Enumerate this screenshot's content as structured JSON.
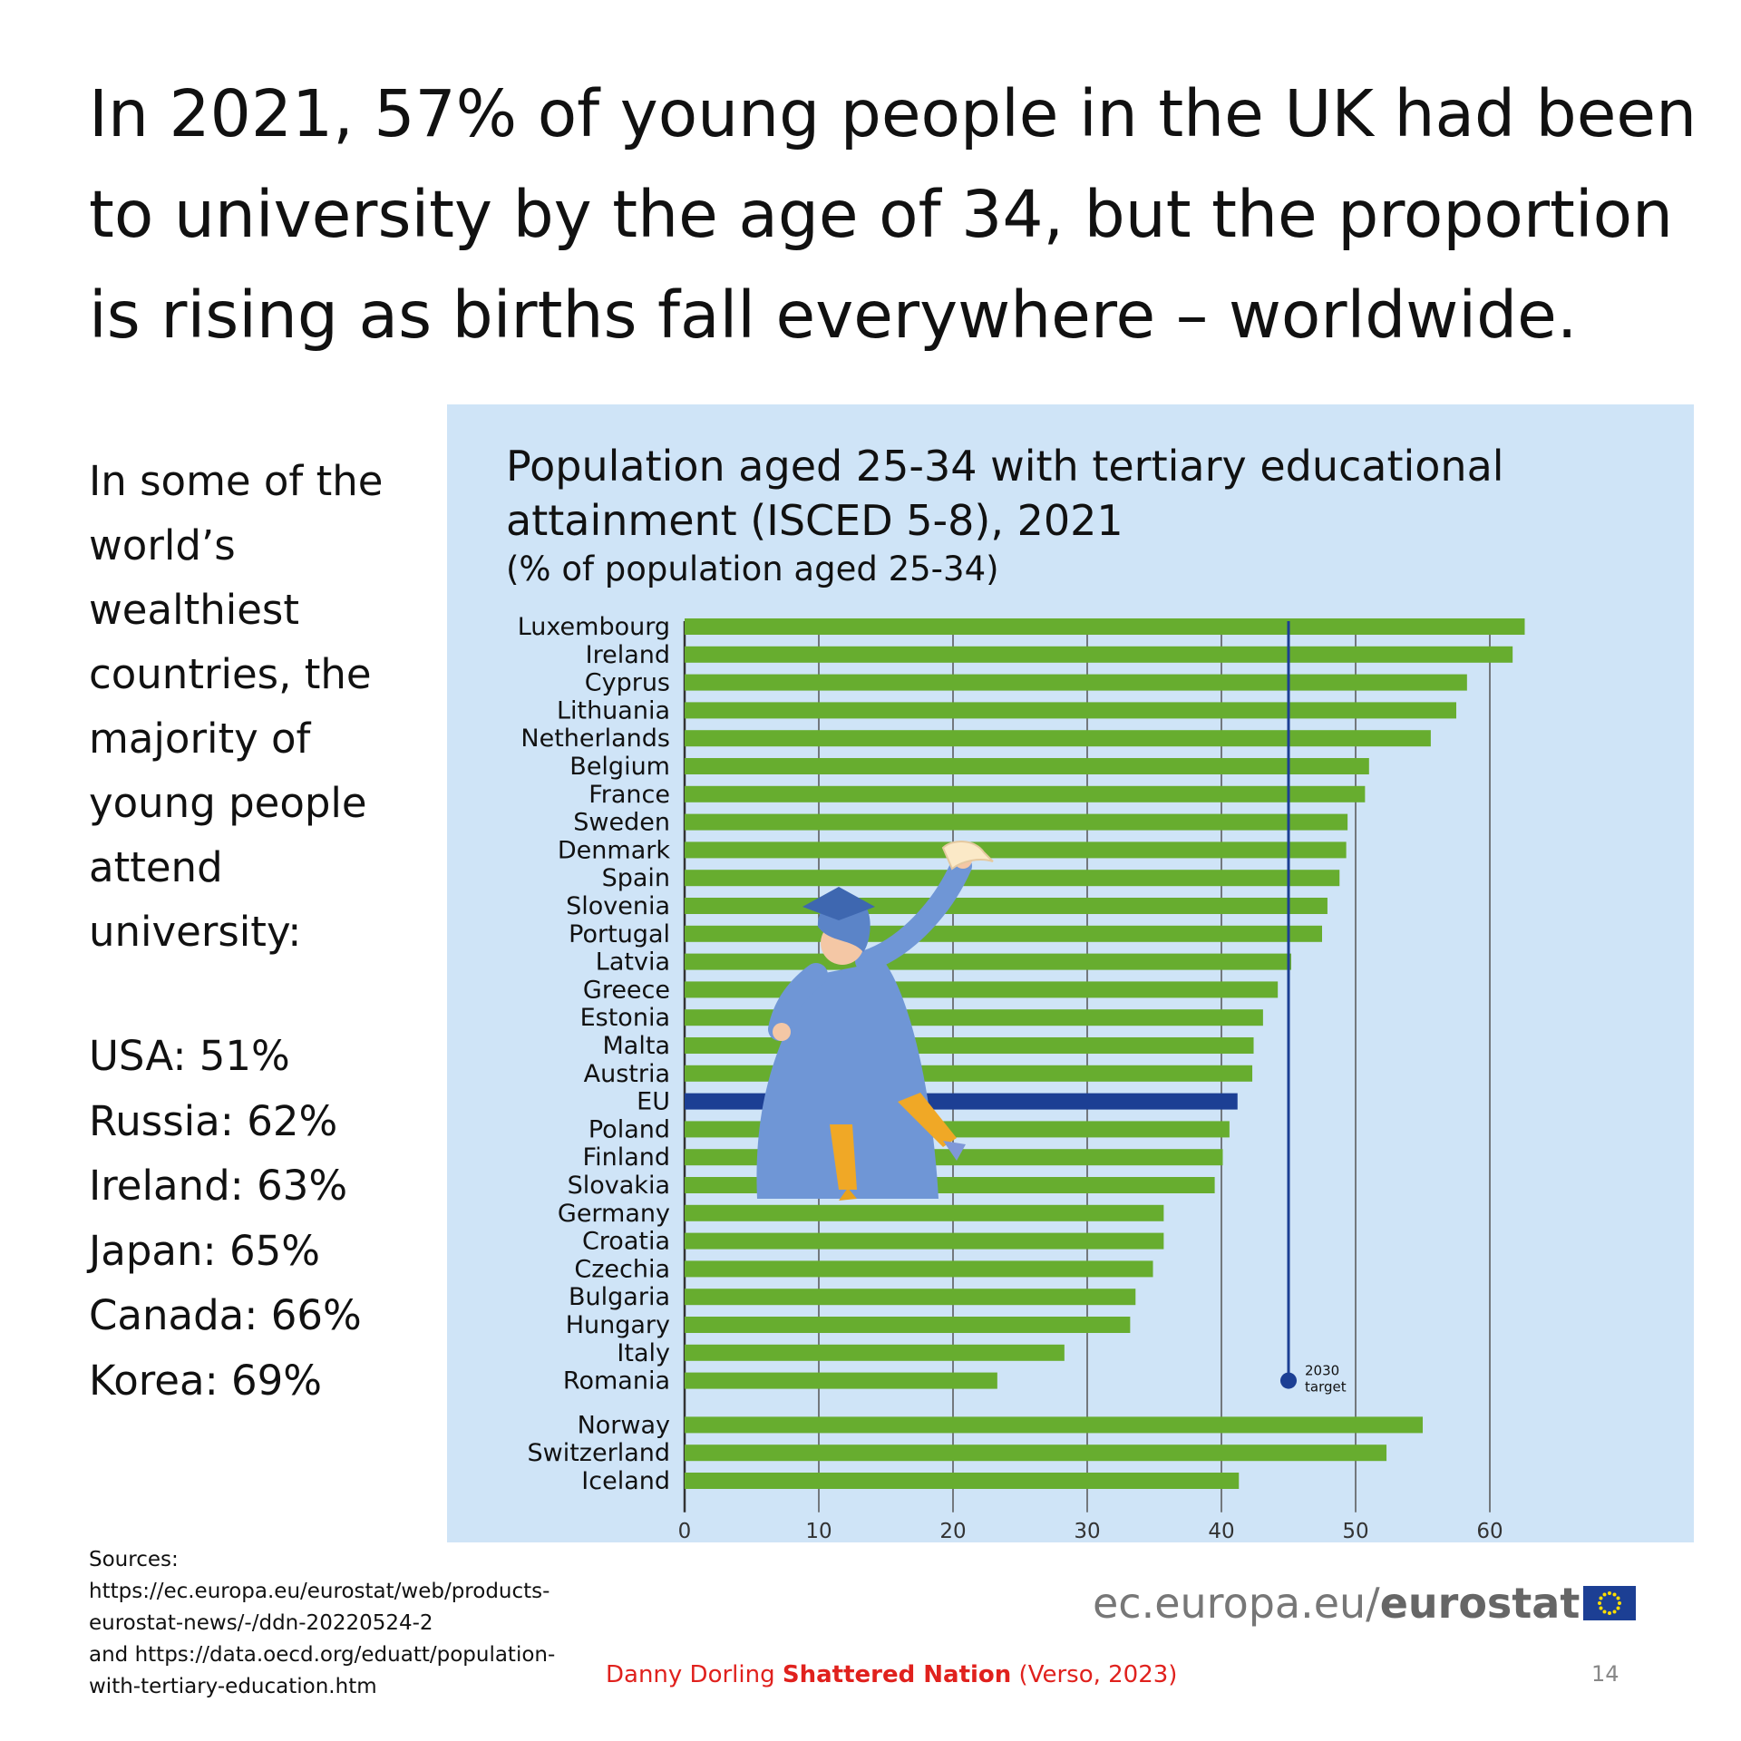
{
  "headline": "In 2021, 57% of young people in the UK had been to university by the age of 34, but the proportion is rising as births fall everywhere – worldwide.",
  "side": {
    "intro": "In some of the world’s wealthiest countries, the majority of young people attend university:",
    "stats": [
      {
        "text": "USA: 51%"
      },
      {
        "text": "Russia: 62%"
      },
      {
        "text": "Ireland: 63%"
      },
      {
        "text": "Japan: 65%"
      },
      {
        "text": "Canada: 66%"
      },
      {
        "text": "Korea: 69%"
      }
    ]
  },
  "chart_data": {
    "type": "bar",
    "orientation": "horizontal",
    "title": "Population aged 25-34 with tertiary educational attainment (ISCED 5-8), 2021",
    "subtitle": "(% of population aged 25-34)",
    "xlim": [
      0,
      65
    ],
    "xticks": [
      "0",
      "10",
      "20",
      "30",
      "40",
      "50",
      "60"
    ],
    "grid": true,
    "target": {
      "value": 45,
      "label_line1": "2030",
      "label_line2": "target"
    },
    "colors": {
      "bar": "#67ad2f",
      "highlight": "#1c3f94",
      "target": "#1c3f94",
      "grid": "#555555"
    },
    "categories": [
      "Luxembourg",
      "Ireland",
      "Cyprus",
      "Lithuania",
      "Netherlands",
      "Belgium",
      "France",
      "Sweden",
      "Denmark",
      "Spain",
      "Slovenia",
      "Portugal",
      "Latvia",
      "Greece",
      "Estonia",
      "Malta",
      "Austria",
      "EU",
      "Poland",
      "Finland",
      "Slovakia",
      "Germany",
      "Croatia",
      "Czechia",
      "Bulgaria",
      "Hungary",
      "Italy",
      "Romania",
      "Norway",
      "Switzerland",
      "Iceland"
    ],
    "values": [
      62.6,
      61.7,
      58.3,
      57.5,
      55.6,
      51.0,
      50.7,
      49.4,
      49.3,
      48.8,
      47.9,
      47.5,
      45.2,
      44.2,
      43.1,
      42.4,
      42.3,
      41.2,
      40.6,
      40.1,
      39.5,
      35.7,
      35.7,
      34.9,
      33.6,
      33.2,
      28.3,
      23.3,
      55.0,
      52.3,
      41.3
    ],
    "highlight": "EU",
    "gap_before": "Norway"
  },
  "logo": {
    "domain": "ec.europa.eu/",
    "brand": "eurostat"
  },
  "sources": {
    "label": "Sources:",
    "line1": "https://ec.europa.eu/eurostat/web/products-eurostat-news/-/ddn-20220524-2",
    "line2": "and https://data.oecd.org/eduatt/population-with-tertiary-education.htm"
  },
  "credit": {
    "author": "Danny Dorling ",
    "book": "Shattered Nation",
    "publisher": " (Verso, 2023)"
  },
  "page_number": "14"
}
